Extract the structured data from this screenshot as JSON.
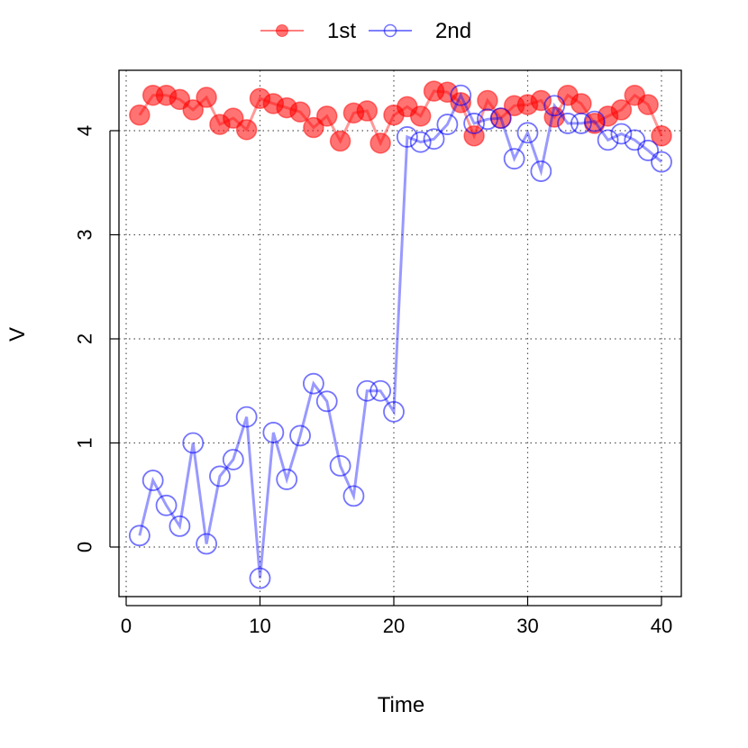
{
  "chart_data": {
    "type": "line",
    "xlabel": "Time",
    "ylabel": "V",
    "xlim": [
      0,
      40
    ],
    "ylim": [
      -0.5,
      4.5
    ],
    "xticks": [
      "0",
      "10",
      "20",
      "30",
      "40"
    ],
    "yticks": [
      "0",
      "1",
      "2",
      "3",
      "4"
    ],
    "grid": true,
    "legend_position": "top-center",
    "x": [
      1,
      2,
      3,
      4,
      5,
      6,
      7,
      8,
      9,
      10,
      11,
      12,
      13,
      14,
      15,
      16,
      17,
      18,
      19,
      20,
      21,
      22,
      23,
      24,
      25,
      26,
      27,
      28,
      29,
      30,
      31,
      32,
      33,
      34,
      35,
      36,
      37,
      38,
      39,
      40
    ],
    "series": [
      {
        "name": "1st",
        "color": "#ff0000",
        "marker": "filled-circle",
        "values": [
          4.15,
          4.34,
          4.34,
          4.3,
          4.2,
          4.32,
          4.06,
          4.12,
          4.01,
          4.31,
          4.26,
          4.22,
          4.18,
          4.03,
          4.14,
          3.9,
          4.17,
          4.19,
          3.88,
          4.15,
          4.23,
          4.14,
          4.38,
          4.37,
          4.27,
          3.95,
          4.29,
          4.12,
          4.24,
          4.25,
          4.29,
          4.13,
          4.34,
          4.26,
          4.07,
          4.14,
          4.2,
          4.34,
          4.25,
          3.95
        ]
      },
      {
        "name": "2nd",
        "color": "#0000ff",
        "marker": "open-circle",
        "values": [
          0.11,
          0.64,
          0.4,
          0.2,
          1.0,
          0.03,
          0.68,
          0.84,
          1.25,
          -0.3,
          1.1,
          0.65,
          1.07,
          1.57,
          1.4,
          0.78,
          0.49,
          1.5,
          1.5,
          1.3,
          3.94,
          3.89,
          3.92,
          4.06,
          4.34,
          4.07,
          4.11,
          4.12,
          3.73,
          3.98,
          3.61,
          4.24,
          4.07,
          4.07,
          4.09,
          3.91,
          3.97,
          3.91,
          3.81,
          3.7
        ]
      }
    ]
  }
}
